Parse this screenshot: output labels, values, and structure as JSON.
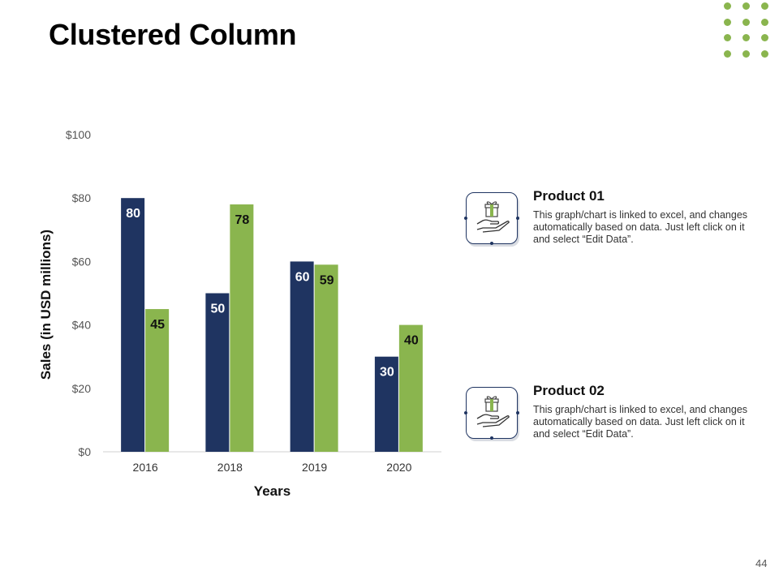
{
  "slide": {
    "title": "Clustered Column",
    "page_number": "44"
  },
  "colors": {
    "series_1": "#1f3461",
    "series_2": "#8ab54e",
    "accent_dots": "#8ab54e"
  },
  "chart_data": {
    "type": "bar",
    "title": "",
    "xlabel": "Years",
    "ylabel": "Sales (in USD millions)",
    "categories": [
      "2016",
      "2018",
      "2019",
      "2020"
    ],
    "series": [
      {
        "name": "Product 01",
        "values": [
          80,
          50,
          60,
          30
        ]
      },
      {
        "name": "Product 02",
        "values": [
          45,
          78,
          59,
          40
        ]
      }
    ],
    "ylim": [
      0,
      100
    ],
    "yticks": [
      0,
      20,
      40,
      60,
      80,
      100
    ],
    "ytick_labels": [
      "$0",
      "$20",
      "$40",
      "$60",
      "$80",
      "$100"
    ],
    "grid": false,
    "data_labels": true
  },
  "products": [
    {
      "title": "Product 01",
      "description": "This graph/chart is linked to excel, and changes automatically based on data. Just left click on it and select “Edit Data”.",
      "icon": "gift-in-hand-icon"
    },
    {
      "title": "Product 02",
      "description": "This graph/chart is linked to excel, and changes automatically based on data. Just left click on it and select “Edit Data”.",
      "icon": "gift-in-hand-icon"
    }
  ]
}
